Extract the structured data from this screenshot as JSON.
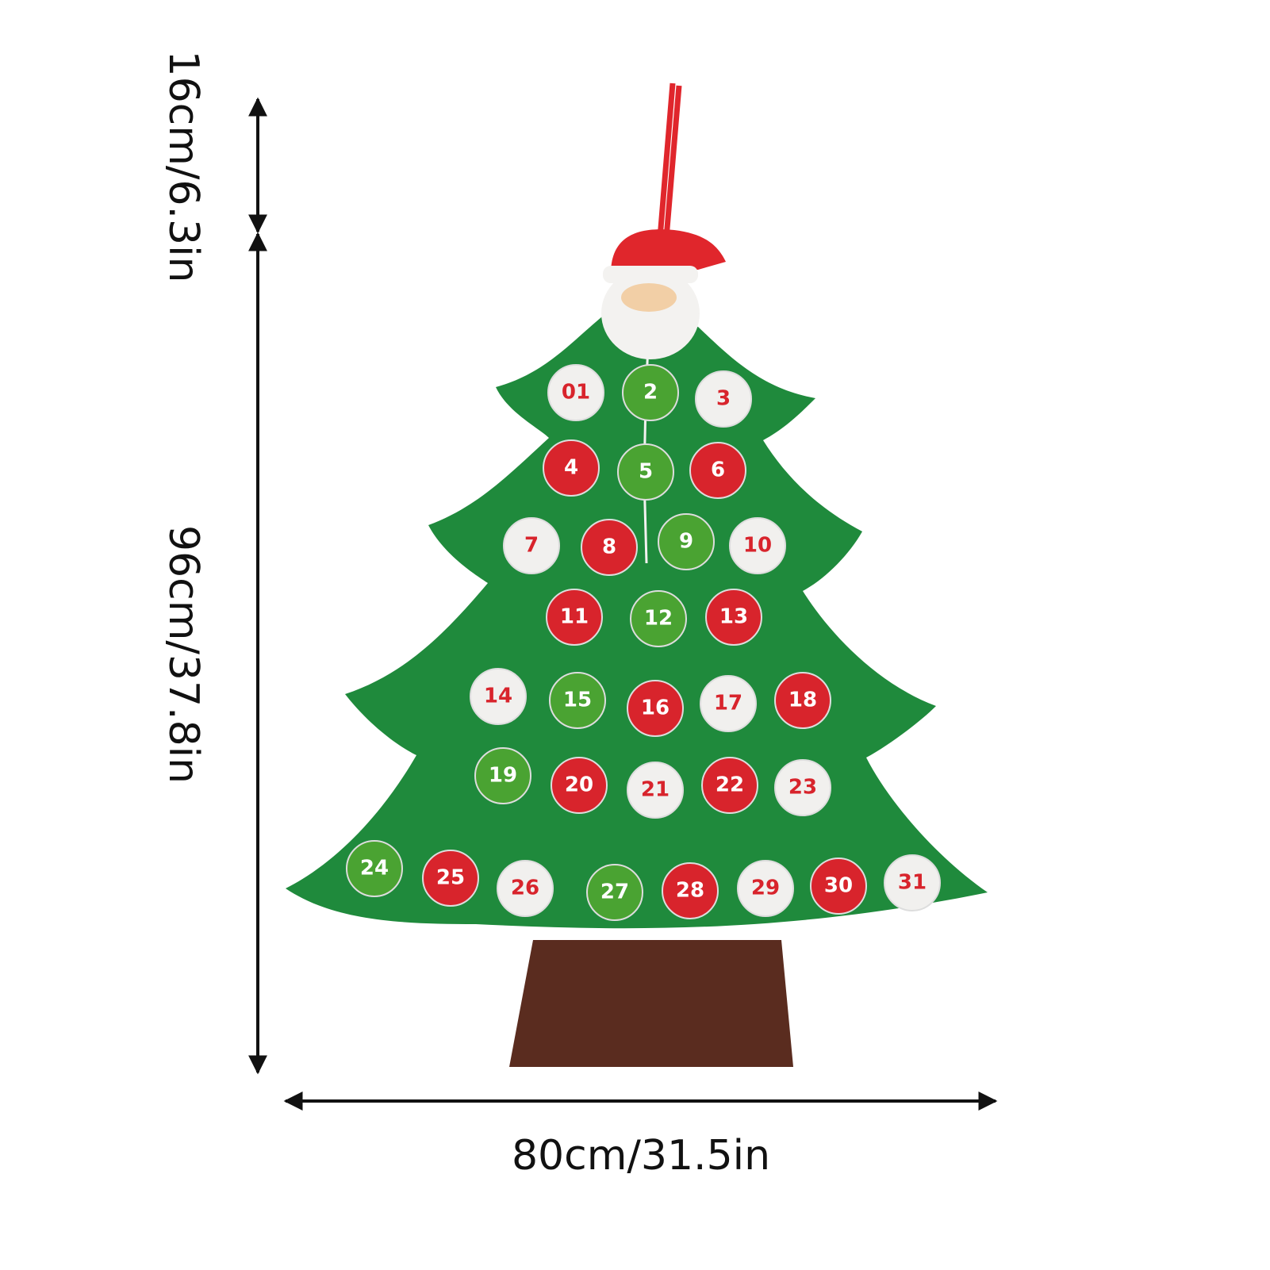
{
  "dimensions": {
    "hanger_height": "16cm/6.3in",
    "tree_height": "96cm/37.8in",
    "tree_width": "80cm/31.5in"
  },
  "ornaments": [
    {
      "label": "01",
      "color": "#f1f0ee"
    },
    {
      "label": "2",
      "color": "#4aa332"
    },
    {
      "label": "3",
      "color": "#f1f0ee"
    },
    {
      "label": "4",
      "color": "#d8242c"
    },
    {
      "label": "5",
      "color": "#4aa332"
    },
    {
      "label": "6",
      "color": "#d8242c"
    },
    {
      "label": "7",
      "color": "#f1f0ee"
    },
    {
      "label": "8",
      "color": "#d8242c"
    },
    {
      "label": "9",
      "color": "#4aa332"
    },
    {
      "label": "10",
      "color": "#f1f0ee"
    },
    {
      "label": "11",
      "color": "#d8242c"
    },
    {
      "label": "12",
      "color": "#4aa332"
    },
    {
      "label": "13",
      "color": "#d8242c"
    },
    {
      "label": "14",
      "color": "#f1f0ee"
    },
    {
      "label": "15",
      "color": "#4aa332"
    },
    {
      "label": "16",
      "color": "#d8242c"
    },
    {
      "label": "17",
      "color": "#f1f0ee"
    },
    {
      "label": "18",
      "color": "#d8242c"
    },
    {
      "label": "19",
      "color": "#4aa332"
    },
    {
      "label": "20",
      "color": "#d8242c"
    },
    {
      "label": "21",
      "color": "#f1f0ee"
    },
    {
      "label": "22",
      "color": "#d8242c"
    },
    {
      "label": "23",
      "color": "#f1f0ee"
    },
    {
      "label": "24",
      "color": "#4aa332"
    },
    {
      "label": "25",
      "color": "#d8242c"
    },
    {
      "label": "26",
      "color": "#f1f0ee"
    },
    {
      "label": "27",
      "color": "#4aa332"
    },
    {
      "label": "28",
      "color": "#d8242c"
    },
    {
      "label": "29",
      "color": "#f1f0ee"
    },
    {
      "label": "30",
      "color": "#d8242c"
    },
    {
      "label": "31",
      "color": "#f1f0ee"
    }
  ]
}
